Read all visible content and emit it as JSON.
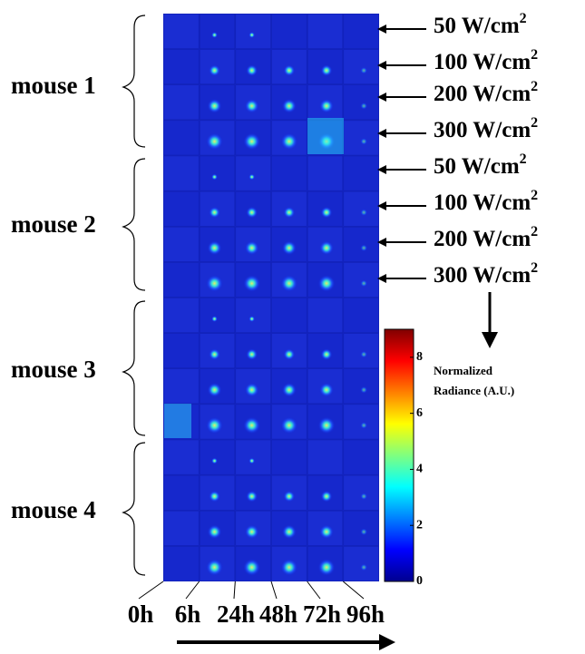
{
  "mice": [
    "mouse 1",
    "mouse 2",
    "mouse 3",
    "mouse 4"
  ],
  "power_labels": [
    {
      "text": "50 W/cm",
      "sup": "2"
    },
    {
      "text": "100 W/cm",
      "sup": "2"
    },
    {
      "text": "200 W/cm",
      "sup": "2"
    },
    {
      "text": "300 W/cm",
      "sup": "2"
    },
    {
      "text": "50 W/cm",
      "sup": "2"
    },
    {
      "text": "100 W/cm",
      "sup": "2"
    },
    {
      "text": "200 W/cm",
      "sup": "2"
    },
    {
      "text": "300 W/cm",
      "sup": "2"
    }
  ],
  "times": [
    "0h",
    "6h",
    "24h",
    "48h",
    "72h",
    "96h"
  ],
  "colorbar": {
    "label": [
      "Normalized",
      "Radiance (A.U.)"
    ],
    "range": [
      0,
      9
    ],
    "ticks": [
      0,
      2,
      4,
      6,
      8
    ]
  }
}
